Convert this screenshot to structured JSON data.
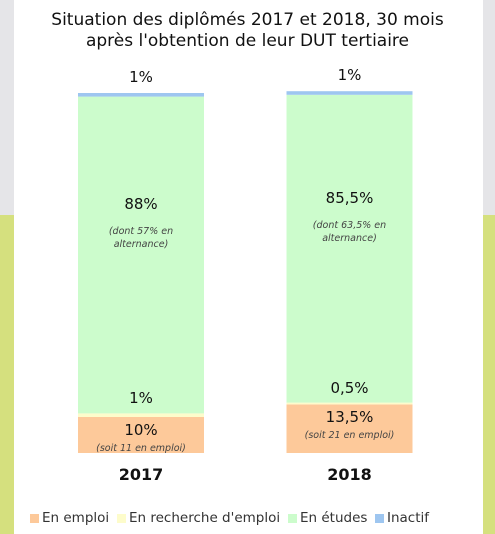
{
  "chart_data": {
    "type": "stacked_bar",
    "title": "Situation des diplômés 2017 et 2018, 30 mois après l'obtention de leur DUT tertiaire",
    "categories": [
      "2017",
      "2018"
    ],
    "series": [
      {
        "name": "En emploi",
        "color": "#fdc99a",
        "values": [
          10,
          13.5
        ],
        "value_labels": [
          "10%",
          "13,5%"
        ],
        "notes": [
          "(soit 11 en emploi)",
          "(soit 21 en emploi)"
        ]
      },
      {
        "name": "En recherche d'emploi",
        "color": "#fdfccb",
        "values": [
          1,
          0.5
        ],
        "value_labels": [
          "1%",
          "0,5%"
        ]
      },
      {
        "name": "En études",
        "color": "#ccfccc",
        "values": [
          88,
          85.5
        ],
        "value_labels": [
          "88%",
          "85,5%"
        ],
        "notes": [
          "(dont 57% en alternance)",
          "(dont 63,5% en alternance)"
        ]
      },
      {
        "name": "Inactif",
        "color": "#9ec6f0",
        "values": [
          1,
          1
        ],
        "value_labels": [
          "1%",
          "1%"
        ]
      }
    ]
  }
}
